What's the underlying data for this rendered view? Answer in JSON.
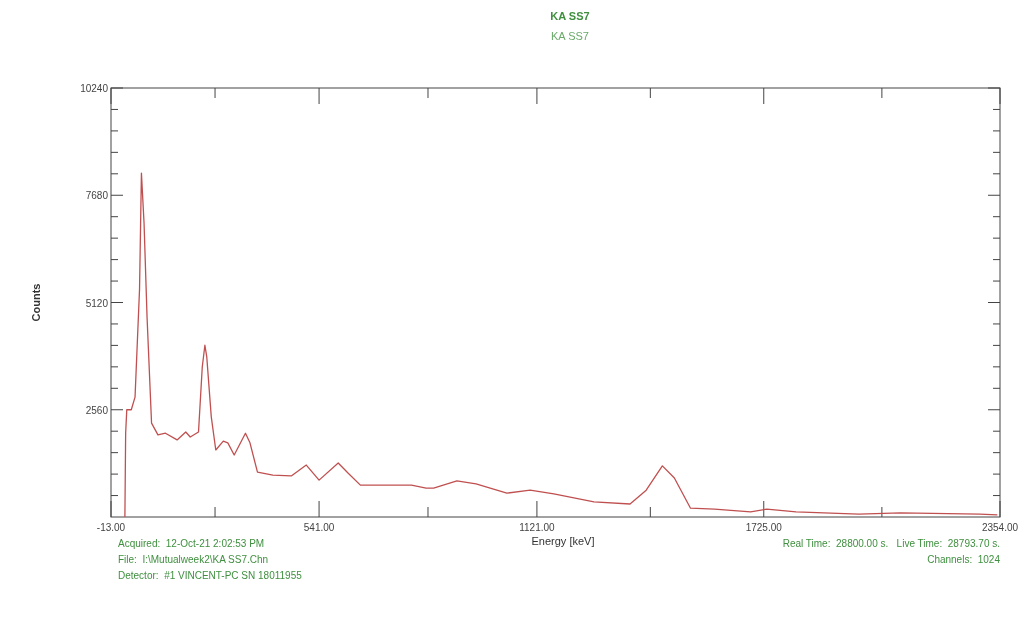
{
  "chart_data": {
    "type": "line",
    "title": "KA SS7",
    "subtitle": "KA SS7",
    "xlabel": "Energy [keV]",
    "ylabel": "Counts",
    "annotations": [
      "Acquired:  12-Oct-21 2:02:53 PM",
      "File:  I:\\Mutualweek2\\KA SS7.Chn",
      "Detector:  #1 VINCENT-PC SN 18011955",
      "Real Time:  28800.00 s.   Live Time:  28793.70 s.",
      "Channels:  1024"
    ],
    "xlim": [
      -13,
      2354
    ],
    "ylim": [
      0,
      10240
    ],
    "xticks": [
      {
        "value": -13,
        "label": "-13.00"
      },
      {
        "value": 264,
        "label": null
      },
      {
        "value": 541,
        "label": "541.00"
      },
      {
        "value": 831,
        "label": null
      },
      {
        "value": 1121,
        "label": "1121.00"
      },
      {
        "value": 1423,
        "label": null
      },
      {
        "value": 1725,
        "label": "1725.00"
      },
      {
        "value": 2039.5,
        "label": null
      },
      {
        "value": 2354,
        "label": "2354.00"
      }
    ],
    "yticks": [
      {
        "value": 512,
        "label": null
      },
      {
        "value": 1024,
        "label": null
      },
      {
        "value": 1536,
        "label": null
      },
      {
        "value": 2048,
        "label": null
      },
      2560,
      {
        "value": 3072,
        "label": null
      },
      {
        "value": 3584,
        "label": null
      },
      {
        "value": 4096,
        "label": null
      },
      {
        "value": 4608,
        "label": null
      },
      5120,
      {
        "value": 5632,
        "label": null
      },
      {
        "value": 6144,
        "label": null
      },
      {
        "value": 6656,
        "label": null
      },
      {
        "value": 7168,
        "label": null
      },
      7680,
      {
        "value": 8192,
        "label": null
      },
      {
        "value": 8704,
        "label": null
      },
      {
        "value": 9216,
        "label": null
      },
      {
        "value": 9728,
        "label": null
      },
      10240
    ],
    "grid": false,
    "marker": "none",
    "line_style": "solid",
    "x": [
      24,
      26,
      29,
      41,
      51,
      63,
      68,
      75,
      83,
      95,
      112,
      132,
      163,
      186,
      198,
      220,
      230,
      237,
      242,
      254,
      266,
      286,
      298,
      315,
      345,
      357,
      377,
      418,
      467,
      507,
      541,
      592,
      618,
      651,
      703,
      787,
      826,
      846,
      908,
      959,
      1041,
      1103,
      1166,
      1273,
      1369,
      1412,
      1455,
      1487,
      1530,
      1594,
      1690,
      1733,
      1811,
      1978,
      2089,
      2300,
      2347
    ],
    "series": [
      {
        "color": "#c05050",
        "values": [
          0,
          2000,
          2560,
          2560,
          2860,
          5440,
          8210,
          7010,
          4770,
          2240,
          1960,
          2000,
          1840,
          2030,
          1910,
          2030,
          3580,
          4100,
          3820,
          2390,
          1600,
          1810,
          1770,
          1480,
          2000,
          1770,
          1070,
          1000,
          980,
          1240,
          880,
          1290,
          1050,
          760,
          760,
          760,
          690,
          690,
          860,
          790,
          570,
          640,
          550,
          360,
          310,
          640,
          1220,
          930,
          210,
          190,
          120,
          190,
          120,
          70,
          100,
          70,
          50
        ]
      }
    ]
  }
}
